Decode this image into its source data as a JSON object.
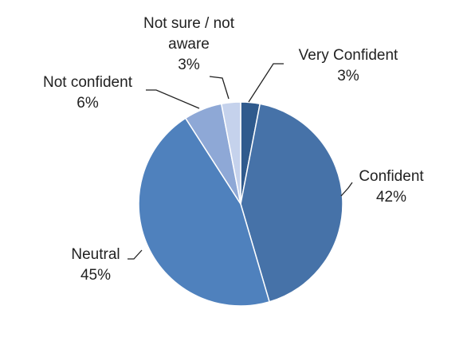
{
  "chart_data": {
    "type": "pie",
    "categories": [
      "Very Confident",
      "Confident",
      "Neutral",
      "Not confident",
      "Not sure / not aware"
    ],
    "values": [
      3,
      42,
      45,
      6,
      3
    ],
    "value_labels": [
      "3%",
      "42%",
      "45%",
      "6%",
      "3%"
    ],
    "colors": [
      "#2f5a8d",
      "#4672a8",
      "#4f81bd",
      "#8ea8d6",
      "#c5d2ec"
    ]
  }
}
